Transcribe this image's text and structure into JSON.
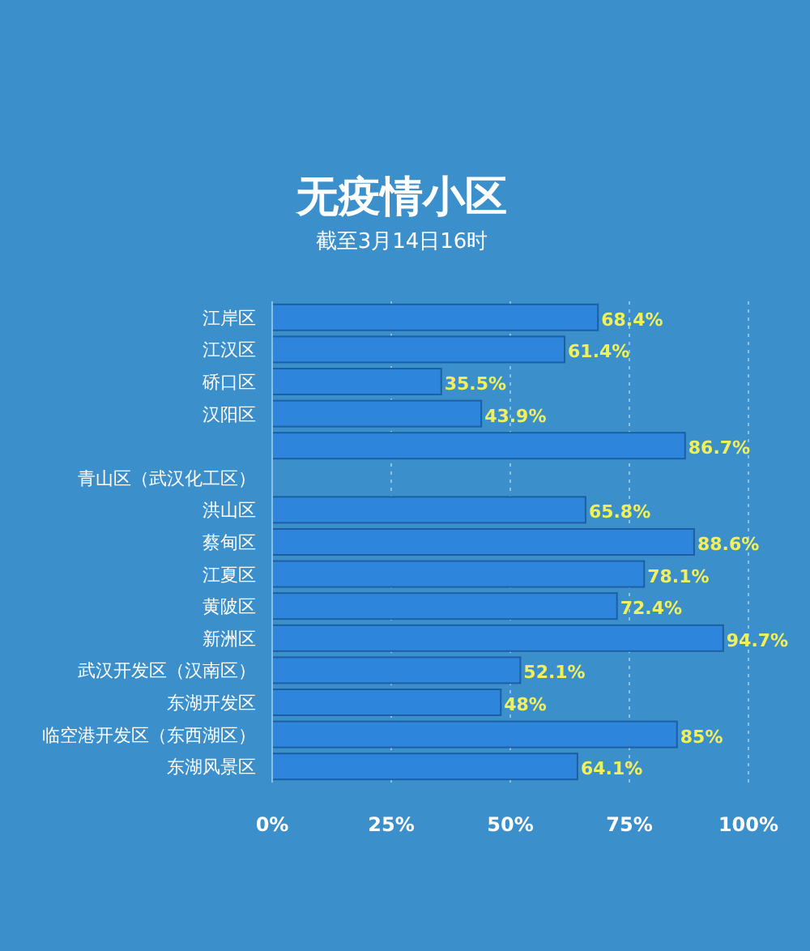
{
  "chart_data": {
    "type": "bar",
    "orientation": "horizontal",
    "title": "无疫情小区",
    "subtitle": "截至3月14日16时",
    "categories": [
      "江岸区",
      "江汉区",
      "硚口区",
      "汉阳区",
      null,
      "青山区（武汉化工区）",
      "洪山区",
      "蔡甸区",
      "江夏区",
      "黄陂区",
      "新洲区",
      "武汉开发区（汉南区）",
      "东湖开发区",
      "临空港开发区（东西湖区）",
      "东湖风景区"
    ],
    "values": [
      68.4,
      61.4,
      35.5,
      43.9,
      86.7,
      null,
      65.8,
      88.6,
      78.1,
      72.4,
      94.7,
      52.1,
      48,
      85,
      64.1
    ],
    "value_labels": [
      "68.4%",
      "61.4%",
      "35.5%",
      "43.9%",
      "86.7%",
      null,
      "65.8%",
      "88.6%",
      "78.1%",
      "72.4%",
      "94.7%",
      "52.1%",
      "48%",
      "85%",
      "64.1%"
    ],
    "color": "#2d86dc",
    "xlim": [
      0,
      100
    ],
    "xticks": [
      {
        "value": 0,
        "label": "0%"
      },
      {
        "value": 25,
        "label": "25%"
      },
      {
        "value": 50,
        "label": "50%"
      },
      {
        "value": 75,
        "label": "75%"
      },
      {
        "value": 100,
        "label": "100%"
      }
    ],
    "grid": "x"
  }
}
